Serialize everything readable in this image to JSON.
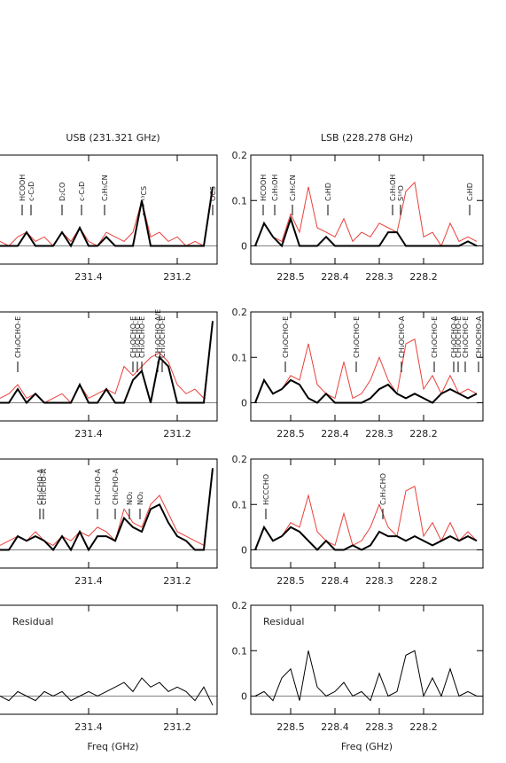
{
  "chart_data": [
    {
      "type": "line",
      "title": "USB (231.321 GHz)",
      "x": [
        231.6,
        231.58,
        231.56,
        231.54,
        231.52,
        231.5,
        231.48,
        231.46,
        231.44,
        231.42,
        231.4,
        231.38,
        231.36,
        231.34,
        231.32,
        231.3,
        231.28,
        231.26,
        231.24,
        231.22,
        231.2,
        231.18,
        231.16,
        231.14,
        231.12
      ],
      "xlim": [
        231.62,
        231.11
      ],
      "ylim": [
        -0.04,
        0.2
      ],
      "xticks": [
        231.4,
        231.2
      ],
      "series": [
        {
          "color": "#e8403a",
          "width": 1,
          "values": [
            0.01,
            0,
            0.02,
            0.03,
            0.01,
            0.02,
            0,
            0.03,
            0.01,
            0.04,
            0.01,
            0,
            0.03,
            0.02,
            0.01,
            0.03,
            0.1,
            0.02,
            0.03,
            0.01,
            0.02,
            0,
            0.01,
            0,
            0.12
          ]
        },
        {
          "color": "#000000",
          "width": 2,
          "values": [
            0,
            0,
            0,
            0.03,
            0,
            0,
            0,
            0.03,
            0,
            0.04,
            0,
            0,
            0.02,
            0,
            0,
            0,
            0.1,
            0,
            0,
            0,
            0,
            0,
            0,
            0,
            0.13
          ]
        }
      ],
      "annotations": [
        {
          "text": "HCOOH",
          "x": 231.55
        },
        {
          "text": "c-C₃D",
          "x": 231.53
        },
        {
          "text": "D₂CO",
          "x": 231.46
        },
        {
          "text": "c-C₃D",
          "x": 231.416
        },
        {
          "text": "C₂H₅CN",
          "x": 231.364
        },
        {
          "text": "¹³CS",
          "x": 231.276
        },
        {
          "text": "OCS",
          "x": 231.12
        }
      ]
    },
    {
      "type": "line",
      "title": "LSB (228.278 GHz)",
      "x": [
        228.58,
        228.56,
        228.54,
        228.52,
        228.5,
        228.48,
        228.46,
        228.44,
        228.42,
        228.4,
        228.38,
        228.36,
        228.34,
        228.32,
        228.3,
        228.28,
        228.26,
        228.24,
        228.22,
        228.2,
        228.18,
        228.16,
        228.14,
        228.12,
        228.1,
        228.08
      ],
      "xlim": [
        228.59,
        228.066
      ],
      "ylim": [
        -0.04,
        0.2
      ],
      "xticks": [
        228.5,
        228.4,
        228.3,
        228.2
      ],
      "yticks": [
        0,
        0.1,
        0.2
      ],
      "series": [
        {
          "color": "#e8403a",
          "width": 1,
          "values": [
            0,
            0.05,
            0.02,
            0.01,
            0.07,
            0.03,
            0.13,
            0.04,
            0.03,
            0.02,
            0.06,
            0.01,
            0.03,
            0.02,
            0.05,
            0.04,
            0.03,
            0.12,
            0.14,
            0.02,
            0.03,
            0,
            0.05,
            0.01,
            0.02,
            0.01
          ]
        },
        {
          "color": "#000000",
          "width": 2,
          "values": [
            0,
            0.05,
            0.02,
            0,
            0.06,
            0,
            0,
            0,
            0.02,
            0,
            0,
            0,
            0,
            0,
            0,
            0.03,
            0.03,
            0,
            0,
            0,
            0,
            0,
            0,
            0,
            0.01,
            0
          ]
        }
      ],
      "annotations": [
        {
          "text": "HCOOH",
          "x": 228.562
        },
        {
          "text": "C₂H₅OH",
          "x": 228.536
        },
        {
          "text": "C₂H₅CN",
          "x": 228.496
        },
        {
          "text": "C₃HD",
          "x": 228.416
        },
        {
          "text": "C₂H₅OH",
          "x": 228.27
        },
        {
          "text": "S¹⁸O",
          "x": 228.252
        },
        {
          "text": "C₃HD",
          "x": 228.096
        }
      ]
    },
    {
      "type": "line",
      "x": [
        231.6,
        231.58,
        231.56,
        231.54,
        231.52,
        231.5,
        231.48,
        231.46,
        231.44,
        231.42,
        231.4,
        231.38,
        231.36,
        231.34,
        231.32,
        231.3,
        231.28,
        231.26,
        231.24,
        231.22,
        231.2,
        231.18,
        231.16,
        231.14,
        231.12
      ],
      "xlim": [
        231.62,
        231.11
      ],
      "ylim": [
        -0.04,
        0.2
      ],
      "xticks": [
        231.4,
        231.2
      ],
      "series": [
        {
          "color": "#e8403a",
          "width": 1,
          "values": [
            0.01,
            0.02,
            0.04,
            0.01,
            0.02,
            0,
            0.01,
            0.02,
            0,
            0.04,
            0.01,
            0.02,
            0.03,
            0.02,
            0.08,
            0.06,
            0.08,
            0.1,
            0.11,
            0.09,
            0.04,
            0.02,
            0.03,
            0.01,
            0.18
          ]
        },
        {
          "color": "#000000",
          "width": 2,
          "values": [
            0,
            0,
            0.03,
            0,
            0.02,
            0,
            0,
            0,
            0,
            0.04,
            0,
            0,
            0.03,
            0,
            0,
            0.05,
            0.07,
            0,
            0.1,
            0.08,
            0,
            0,
            0,
            0,
            0.18
          ]
        }
      ],
      "annotations": [
        {
          "text": "CH₃OCHO-E",
          "x": 231.56
        },
        {
          "text": "CH₃OCHO-E",
          "x": 231.3
        },
        {
          "text": "CH₃OCHO-E",
          "x": 231.29
        },
        {
          "text": "CH₃OCHO-E",
          "x": 231.28
        },
        {
          "text": "CH₃OCHO-A/E",
          "x": 231.244
        },
        {
          "text": "CH₃OCHO-E",
          "x": 231.234
        }
      ]
    },
    {
      "type": "line",
      "x": [
        228.58,
        228.56,
        228.54,
        228.52,
        228.5,
        228.48,
        228.46,
        228.44,
        228.42,
        228.4,
        228.38,
        228.36,
        228.34,
        228.32,
        228.3,
        228.28,
        228.26,
        228.24,
        228.22,
        228.2,
        228.18,
        228.16,
        228.14,
        228.12,
        228.1,
        228.08
      ],
      "xlim": [
        228.59,
        228.066
      ],
      "ylim": [
        -0.04,
        0.2
      ],
      "xticks": [
        228.5,
        228.4,
        228.3,
        228.2
      ],
      "yticks": [
        0,
        0.1,
        0.2
      ],
      "series": [
        {
          "color": "#e8403a",
          "width": 1,
          "values": [
            0,
            0.05,
            0.02,
            0.03,
            0.06,
            0.05,
            0.13,
            0.04,
            0.02,
            0.01,
            0.09,
            0.01,
            0.02,
            0.05,
            0.1,
            0.05,
            0.02,
            0.13,
            0.14,
            0.03,
            0.06,
            0.02,
            0.06,
            0.02,
            0.03,
            0.02
          ]
        },
        {
          "color": "#000000",
          "width": 2,
          "values": [
            0,
            0.05,
            0.02,
            0.03,
            0.05,
            0.04,
            0.01,
            0,
            0.02,
            0,
            0,
            0,
            0,
            0.01,
            0.03,
            0.04,
            0.02,
            0.01,
            0.02,
            0.01,
            0,
            0.02,
            0.03,
            0.02,
            0.01,
            0.02
          ]
        }
      ],
      "annotations": [
        {
          "text": "CH₃OCHO-E",
          "x": 228.512
        },
        {
          "text": "CH₃OCHO-E",
          "x": 228.352
        },
        {
          "text": "CH₃OCHO-A",
          "x": 228.25
        },
        {
          "text": "CH₃OCHO-E",
          "x": 228.176
        },
        {
          "text": "CH₃OCHO-A",
          "x": 228.132
        },
        {
          "text": "CH₃OCHO-E",
          "x": 228.122
        },
        {
          "text": "CH₃OCHO-E",
          "x": 228.106
        },
        {
          "text": "CH₃OCHO-A",
          "x": 228.076
        }
      ]
    },
    {
      "type": "line",
      "x": [
        231.6,
        231.58,
        231.56,
        231.54,
        231.52,
        231.5,
        231.48,
        231.46,
        231.44,
        231.42,
        231.4,
        231.38,
        231.36,
        231.34,
        231.32,
        231.3,
        231.28,
        231.26,
        231.24,
        231.22,
        231.2,
        231.18,
        231.16,
        231.14,
        231.12
      ],
      "xlim": [
        231.62,
        231.11
      ],
      "ylim": [
        -0.04,
        0.2
      ],
      "xticks": [
        231.4,
        231.2
      ],
      "series": [
        {
          "color": "#e8403a",
          "width": 1,
          "values": [
            0.01,
            0.02,
            0.03,
            0.02,
            0.04,
            0.02,
            0.01,
            0.03,
            0.02,
            0.04,
            0.03,
            0.05,
            0.04,
            0.02,
            0.09,
            0.06,
            0.05,
            0.1,
            0.12,
            0.08,
            0.04,
            0.03,
            0.02,
            0.01,
            0.17
          ]
        },
        {
          "color": "#000000",
          "width": 2,
          "values": [
            0,
            0,
            0.03,
            0.02,
            0.03,
            0.02,
            0,
            0.03,
            0,
            0.04,
            0,
            0.03,
            0.03,
            0.02,
            0.07,
            0.05,
            0.04,
            0.09,
            0.1,
            0.06,
            0.03,
            0.02,
            0,
            0,
            0.18
          ]
        }
      ],
      "annotations": [
        {
          "text": "CH₃CHO-A",
          "x": 231.51
        },
        {
          "text": "CH₃CHO-A",
          "x": 231.502
        },
        {
          "text": "CH₃CHO-A",
          "x": 231.38
        },
        {
          "text": "CH₃CHO-A",
          "x": 231.34
        },
        {
          "text": "NO₂",
          "x": 231.308
        },
        {
          "text": "NO₂",
          "x": 231.284
        }
      ]
    },
    {
      "type": "line",
      "x": [
        228.58,
        228.56,
        228.54,
        228.52,
        228.5,
        228.48,
        228.46,
        228.44,
        228.42,
        228.4,
        228.38,
        228.36,
        228.34,
        228.32,
        228.3,
        228.28,
        228.26,
        228.24,
        228.22,
        228.2,
        228.18,
        228.16,
        228.14,
        228.12,
        228.1,
        228.08
      ],
      "xlim": [
        228.59,
        228.066
      ],
      "ylim": [
        -0.04,
        0.2
      ],
      "xticks": [
        228.5,
        228.4,
        228.3,
        228.2
      ],
      "yticks": [
        0,
        0.1,
        0.2
      ],
      "series": [
        {
          "color": "#e8403a",
          "width": 1,
          "values": [
            0,
            0.05,
            0.02,
            0.03,
            0.06,
            0.05,
            0.12,
            0.04,
            0.02,
            0.01,
            0.08,
            0.01,
            0.02,
            0.05,
            0.1,
            0.05,
            0.03,
            0.13,
            0.14,
            0.03,
            0.06,
            0.02,
            0.06,
            0.02,
            0.04,
            0.02
          ]
        },
        {
          "color": "#000000",
          "width": 2,
          "values": [
            0,
            0.05,
            0.02,
            0.03,
            0.05,
            0.04,
            0.02,
            0,
            0.02,
            0,
            0,
            0.01,
            0,
            0.01,
            0.04,
            0.03,
            0.03,
            0.02,
            0.03,
            0.02,
            0.01,
            0.02,
            0.03,
            0.02,
            0.03,
            0.02
          ]
        }
      ],
      "annotations": [
        {
          "text": "HCCCHO",
          "x": 228.556
        },
        {
          "text": "C₂H₃CHO",
          "x": 228.292
        }
      ]
    },
    {
      "type": "line",
      "panel_label": "Residual",
      "xlabel": "Freq (GHz)",
      "x": [
        231.6,
        231.58,
        231.56,
        231.54,
        231.52,
        231.5,
        231.48,
        231.46,
        231.44,
        231.42,
        231.4,
        231.38,
        231.36,
        231.34,
        231.32,
        231.3,
        231.28,
        231.26,
        231.24,
        231.22,
        231.2,
        231.18,
        231.16,
        231.14,
        231.12
      ],
      "xlim": [
        231.62,
        231.11
      ],
      "ylim": [
        -0.04,
        0.2
      ],
      "xticks": [
        231.4,
        231.2
      ],
      "series": [
        {
          "color": "#000000",
          "width": 1,
          "values": [
            0,
            -0.01,
            0.01,
            0,
            -0.01,
            0.01,
            0,
            0.01,
            -0.01,
            0,
            0.01,
            0,
            0.01,
            0.02,
            0.03,
            0.01,
            0.04,
            0.02,
            0.03,
            0.01,
            0.02,
            0.01,
            -0.01,
            0.02,
            -0.02
          ]
        }
      ]
    },
    {
      "type": "line",
      "panel_label": "Residual",
      "xlabel": "Freq (GHz)",
      "x": [
        228.58,
        228.56,
        228.54,
        228.52,
        228.5,
        228.48,
        228.46,
        228.44,
        228.42,
        228.4,
        228.38,
        228.36,
        228.34,
        228.32,
        228.3,
        228.28,
        228.26,
        228.24,
        228.22,
        228.2,
        228.18,
        228.16,
        228.14,
        228.12,
        228.1,
        228.08
      ],
      "xlim": [
        228.59,
        228.066
      ],
      "ylim": [
        -0.04,
        0.2
      ],
      "xticks": [
        228.5,
        228.4,
        228.3,
        228.2
      ],
      "yticks": [
        0,
        0.1,
        0.2
      ],
      "series": [
        {
          "color": "#000000",
          "width": 1,
          "values": [
            0,
            0.01,
            -0.01,
            0.04,
            0.06,
            -0.01,
            0.1,
            0.02,
            0,
            0.01,
            0.03,
            0,
            0.01,
            -0.01,
            0.05,
            0,
            0.01,
            0.09,
            0.1,
            0,
            0.04,
            0,
            0.06,
            0,
            0.01,
            0
          ]
        }
      ]
    }
  ]
}
